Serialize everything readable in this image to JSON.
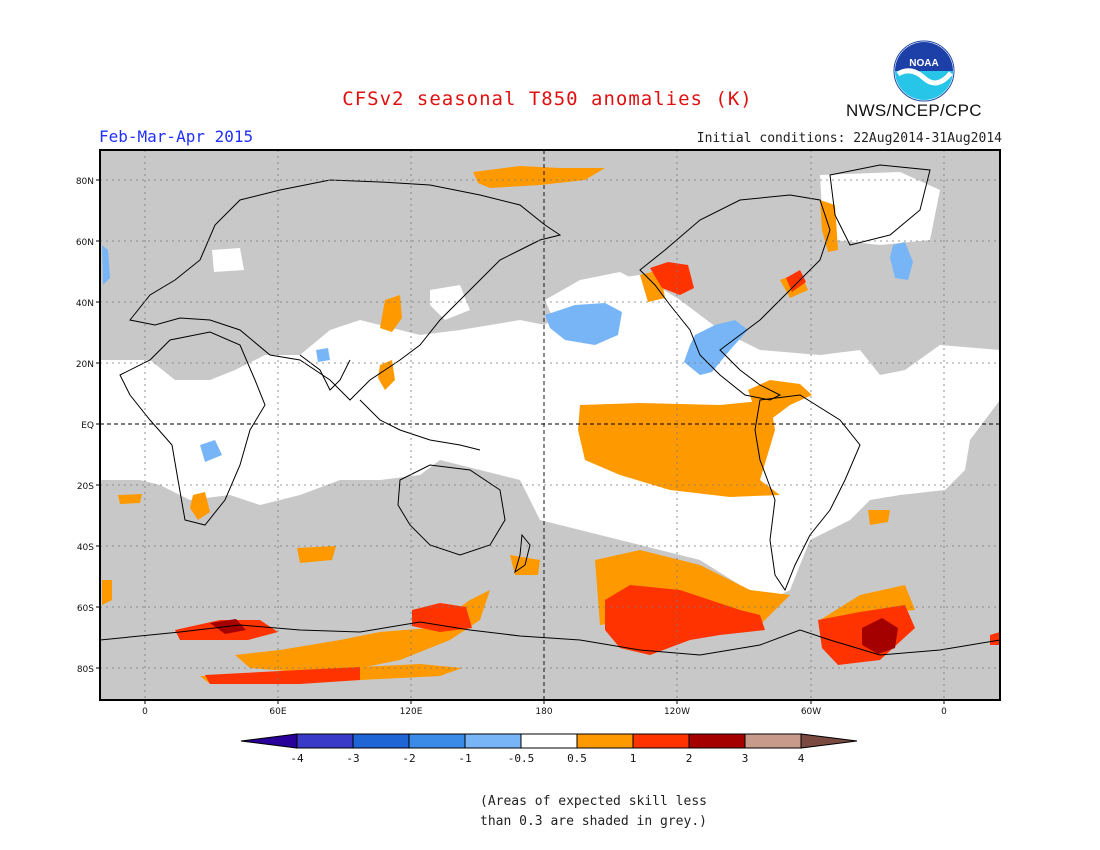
{
  "header": {
    "title": "CFSv2 seasonal T850 anomalies (K)",
    "period": "Feb-Mar-Apr 2015",
    "initial_conditions": "Initial conditions: 22Aug2014-31Aug2014",
    "agency": "NWS/NCEP/CPC",
    "logo_text": "NOAA"
  },
  "map": {
    "projection": "cylindrical-equidistant",
    "lat_labels": [
      "80N",
      "60N",
      "40N",
      "20N",
      "EQ",
      "20S",
      "40S",
      "60S",
      "80S"
    ],
    "lon_labels": [
      "0",
      "60E",
      "120E",
      "180",
      "120W",
      "60W",
      "0"
    ],
    "grid": "dotted",
    "equator_line": "dashed",
    "dateline": "dashed",
    "colors": {
      "low_skill_grey": "#c8c8c8",
      "neutral": "#ffffff",
      "anom_0.5_1": "#ff9900",
      "anom_1_2": "#ff3300",
      "anom_2_3": "#a50000",
      "anom_neg_0.5_1": "#77b5f7",
      "coast": "#000000"
    }
  },
  "colorbar": {
    "labels": [
      "-4",
      "-3",
      "-2",
      "-1",
      "-0.5",
      "0.5",
      "1",
      "2",
      "3",
      "4"
    ],
    "colors": [
      "#2a009a",
      "#3a3ac8",
      "#1f65d5",
      "#3a8be8",
      "#77b5f7",
      "#ffffff",
      "#ff9900",
      "#ff3300",
      "#a50000",
      "#c89a8c",
      "#7a4a40"
    ]
  },
  "footnote": "(Areas of expected skill less\nthan 0.3 are shaded in grey.)"
}
